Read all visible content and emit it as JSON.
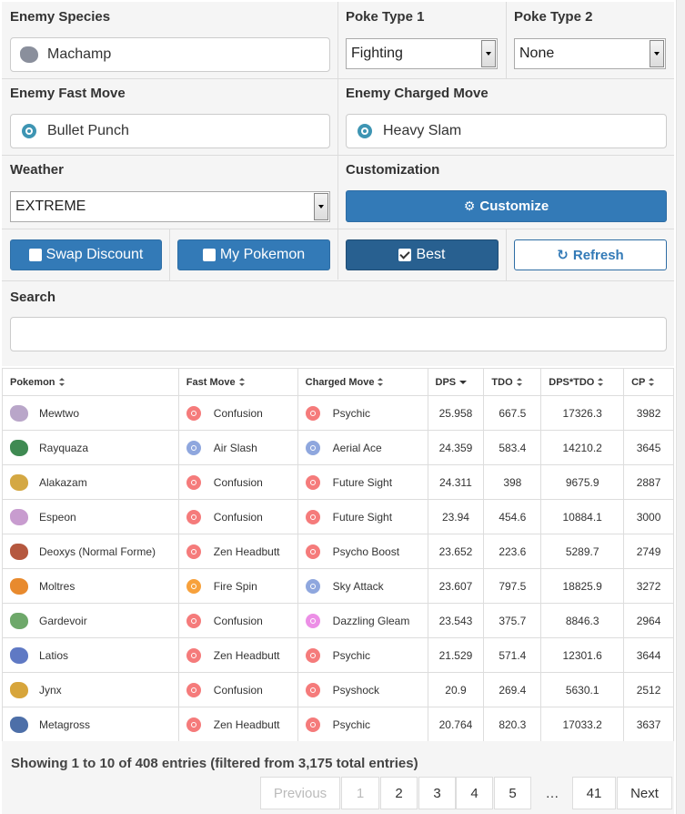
{
  "form": {
    "enemy_species_label": "Enemy Species",
    "enemy_species_value": "Machamp",
    "poketype1_label": "Poke Type 1",
    "poketype1_value": "Fighting",
    "poketype2_label": "Poke Type 2",
    "poketype2_value": "None",
    "fast_move_label": "Enemy Fast Move",
    "fast_move_value": "Bullet Punch",
    "charged_move_label": "Enemy Charged Move",
    "charged_move_value": "Heavy Slam",
    "weather_label": "Weather",
    "weather_value": "EXTREME",
    "customization_label": "Customization",
    "customize_button": "Customize",
    "swap_discount_button": "Swap Discount",
    "my_pokemon_button": "My Pokemon",
    "best_button": "Best",
    "refresh_button": "Refresh",
    "search_label": "Search",
    "search_value": ""
  },
  "table": {
    "headers": [
      "Pokemon",
      "Fast Move",
      "Charged Move",
      "DPS",
      "TDO",
      "DPS*TDO",
      "CP"
    ],
    "rows": [
      {
        "pokemon": "Mewtwo",
        "fast": "Confusion",
        "fast_type": "psychic",
        "charged": "Psychic",
        "charged_type": "psychic",
        "dps": "25.958",
        "tdo": "667.5",
        "dpstdo": "17326.3",
        "cp": "3982",
        "color": "#b9a6c9"
      },
      {
        "pokemon": "Rayquaza",
        "fast": "Air Slash",
        "fast_type": "flying",
        "charged": "Aerial Ace",
        "charged_type": "flying",
        "dps": "24.359",
        "tdo": "583.4",
        "dpstdo": "14210.2",
        "cp": "3645",
        "color": "#3f8a52"
      },
      {
        "pokemon": "Alakazam",
        "fast": "Confusion",
        "fast_type": "psychic",
        "charged": "Future Sight",
        "charged_type": "psychic",
        "dps": "24.311",
        "tdo": "398",
        "dpstdo": "9675.9",
        "cp": "2887",
        "color": "#d4a843"
      },
      {
        "pokemon": "Espeon",
        "fast": "Confusion",
        "fast_type": "psychic",
        "charged": "Future Sight",
        "charged_type": "psychic",
        "dps": "23.94",
        "tdo": "454.6",
        "dpstdo": "10884.1",
        "cp": "3000",
        "color": "#c89ccf"
      },
      {
        "pokemon": "Deoxys (Normal Forme)",
        "fast": "Zen Headbutt",
        "fast_type": "psychic",
        "charged": "Psycho Boost",
        "charged_type": "psychic",
        "dps": "23.652",
        "tdo": "223.6",
        "dpstdo": "5289.7",
        "cp": "2749",
        "color": "#b5583f"
      },
      {
        "pokemon": "Moltres",
        "fast": "Fire Spin",
        "fast_type": "fire",
        "charged": "Sky Attack",
        "charged_type": "flying",
        "dps": "23.607",
        "tdo": "797.5",
        "dpstdo": "18825.9",
        "cp": "3272",
        "color": "#e88a2e"
      },
      {
        "pokemon": "Gardevoir",
        "fast": "Confusion",
        "fast_type": "psychic",
        "charged": "Dazzling Gleam",
        "charged_type": "fairy",
        "dps": "23.543",
        "tdo": "375.7",
        "dpstdo": "8846.3",
        "cp": "2964",
        "color": "#6ea86a"
      },
      {
        "pokemon": "Latios",
        "fast": "Zen Headbutt",
        "fast_type": "psychic",
        "charged": "Psychic",
        "charged_type": "psychic",
        "dps": "21.529",
        "tdo": "571.4",
        "dpstdo": "12301.6",
        "cp": "3644",
        "color": "#5f79c4"
      },
      {
        "pokemon": "Jynx",
        "fast": "Confusion",
        "fast_type": "psychic",
        "charged": "Psyshock",
        "charged_type": "psychic",
        "dps": "20.9",
        "tdo": "269.4",
        "dpstdo": "5630.1",
        "cp": "2512",
        "color": "#d7a53b"
      },
      {
        "pokemon": "Metagross",
        "fast": "Zen Headbutt",
        "fast_type": "psychic",
        "charged": "Psychic",
        "charged_type": "psychic",
        "dps": "20.764",
        "tdo": "820.3",
        "dpstdo": "17033.2",
        "cp": "3637",
        "color": "#4d6fa8"
      }
    ]
  },
  "footer": {
    "info": "Showing 1 to 10 of 408 entries (filtered from 3,175 total entries)",
    "previous": "Previous",
    "pages": [
      "1",
      "2",
      "3",
      "4",
      "5"
    ],
    "ellipsis": "…",
    "last_page": "41",
    "next": "Next"
  }
}
